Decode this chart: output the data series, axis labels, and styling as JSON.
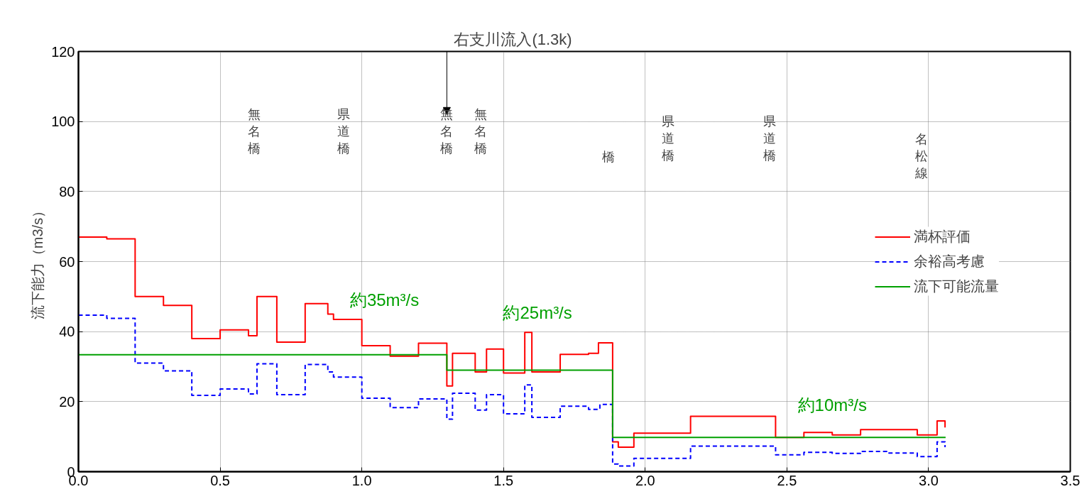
{
  "chart_data": {
    "type": "step",
    "ylabel": "流下能力（m3/s）",
    "xlim": [
      0,
      3.5
    ],
    "ylim": [
      0,
      120
    ],
    "xticks": [
      {
        "value": 0,
        "label": "0.0"
      },
      {
        "value": 0.5,
        "label": "0.5"
      },
      {
        "value": 1,
        "label": "1.0"
      },
      {
        "value": 1.5,
        "label": "1.5"
      },
      {
        "value": 2,
        "label": "2.0"
      },
      {
        "value": 2.5,
        "label": "2.5"
      },
      {
        "value": 3,
        "label": "3.0"
      },
      {
        "value": 3.5,
        "label": "3.5"
      }
    ],
    "yticks": [
      0,
      20,
      40,
      60,
      80,
      100,
      120
    ],
    "grid": true,
    "legend": "right",
    "marker": "none",
    "series": [
      {
        "name": "満杯評価",
        "color": "#ff0000",
        "line_style": "solid",
        "x": [
          0,
          0.1,
          0.2,
          0.3,
          0.4,
          0.5,
          0.6,
          0.63,
          0.7,
          0.8,
          0.88,
          0.9,
          1.0,
          1.1,
          1.2,
          1.3,
          1.32,
          1.4,
          1.44,
          1.5,
          1.575,
          1.6,
          1.7,
          1.8,
          1.835,
          1.885,
          1.905,
          1.96,
          2.16,
          2.46,
          2.56,
          2.66,
          2.76,
          2.96,
          3.03,
          3.058
        ],
        "values": [
          67,
          66.5,
          50,
          47.5,
          38,
          40.5,
          38.8,
          50,
          37,
          48,
          45,
          43.5,
          36,
          33,
          36.7,
          24.5,
          33.8,
          28.5,
          35,
          28.2,
          39.8,
          28.5,
          33.5,
          33.8,
          36.8,
          8.5,
          7,
          11,
          15.8,
          9.8,
          11.2,
          10.5,
          12,
          10.5,
          14.5,
          12.6
        ]
      },
      {
        "name": "余裕高考慮",
        "color": "#0000ff",
        "line_style": "dashed",
        "x": [
          0,
          0.1,
          0.2,
          0.3,
          0.4,
          0.5,
          0.6,
          0.63,
          0.7,
          0.8,
          0.88,
          0.9,
          1.0,
          1.1,
          1.2,
          1.3,
          1.32,
          1.4,
          1.44,
          1.5,
          1.575,
          1.6,
          1.7,
          1.8,
          1.84,
          1.885,
          1.905,
          1.96,
          2.16,
          2.46,
          2.56,
          2.66,
          2.76,
          2.86,
          2.96,
          3.03,
          3.058
        ],
        "values": [
          44.7,
          43.8,
          31,
          28.8,
          21.8,
          23.6,
          22.2,
          30.8,
          22,
          30.6,
          28.5,
          27,
          21,
          18.3,
          20.8,
          15,
          22.4,
          17.6,
          22,
          16.5,
          24.8,
          15.5,
          18.7,
          17.8,
          19.2,
          2.2,
          1.6,
          3.8,
          7.3,
          4.8,
          5.5,
          5.2,
          5.8,
          5.3,
          4.3,
          8.5,
          7
        ]
      },
      {
        "name": "流下可能流量",
        "color": "#00a000",
        "line_style": "solid",
        "x": [
          0,
          1.3,
          1.885,
          3.06
        ],
        "values": [
          33.4,
          29,
          9.8,
          9.8
        ]
      }
    ],
    "annotations": [
      "右支川流入(1.3k)",
      "無名橋",
      "県道橋",
      "無名橋",
      "無名橋",
      "橋",
      "県道橋",
      "県道橋",
      "名松線",
      "約35m³/s",
      "約25m³/s",
      "約10m³/s"
    ]
  }
}
